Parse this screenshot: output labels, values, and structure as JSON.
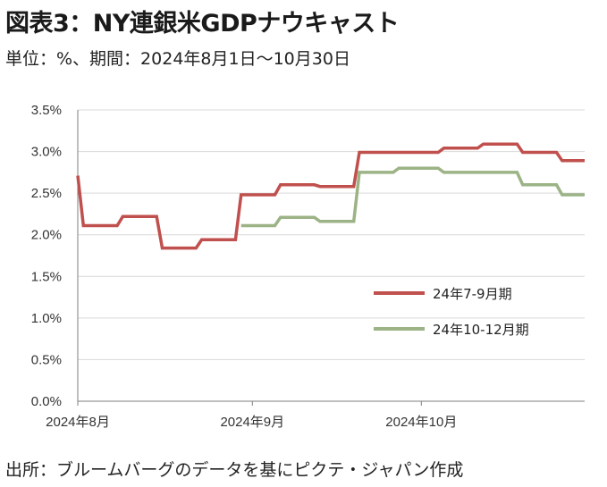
{
  "title": "図表3：NY連銀米GDPナウキャスト",
  "subtitle": "単位：%、期間：2024年8月1日～10月30日",
  "source": "出所：ブルームバーグのデータを基にピクテ・ジャパン作成",
  "chart_data": {
    "type": "line",
    "xlim": [
      "2024-08-01",
      "2024-10-30"
    ],
    "ylim": [
      0,
      3.5
    ],
    "yticks": [
      {
        "value": 0.0,
        "label": "0.0%"
      },
      {
        "value": 0.5,
        "label": "0.5%"
      },
      {
        "value": 1.0,
        "label": "1.0%"
      },
      {
        "value": 1.5,
        "label": "1.5%"
      },
      {
        "value": 2.0,
        "label": "2.0%"
      },
      {
        "value": 2.5,
        "label": "2.5%"
      },
      {
        "value": 3.0,
        "label": "3.0%"
      },
      {
        "value": 3.5,
        "label": "3.5%"
      }
    ],
    "xticks": [
      {
        "date": "2024-08-01",
        "label": "2024年8月"
      },
      {
        "date": "2024-09-01",
        "label": "2024年9月"
      },
      {
        "date": "2024-10-01",
        "label": "2024年10月"
      }
    ],
    "grid": "horizontal",
    "legend": "center-right",
    "series": [
      {
        "name": "24年7-9月期",
        "color": "#c0504d",
        "points": [
          [
            "2024-08-01",
            2.71
          ],
          [
            "2024-08-02",
            2.11
          ],
          [
            "2024-08-08",
            2.11
          ],
          [
            "2024-08-09",
            2.22
          ],
          [
            "2024-08-15",
            2.22
          ],
          [
            "2024-08-16",
            1.84
          ],
          [
            "2024-08-22",
            1.84
          ],
          [
            "2024-08-23",
            1.94
          ],
          [
            "2024-08-29",
            1.94
          ],
          [
            "2024-08-30",
            2.48
          ],
          [
            "2024-09-05",
            2.48
          ],
          [
            "2024-09-06",
            2.6
          ],
          [
            "2024-09-12",
            2.6
          ],
          [
            "2024-09-13",
            2.58
          ],
          [
            "2024-09-19",
            2.58
          ],
          [
            "2024-09-20",
            2.99
          ],
          [
            "2024-10-04",
            2.99
          ],
          [
            "2024-10-05",
            3.04
          ],
          [
            "2024-10-11",
            3.04
          ],
          [
            "2024-10-12",
            3.09
          ],
          [
            "2024-10-18",
            3.09
          ],
          [
            "2024-10-19",
            2.99
          ],
          [
            "2024-10-25",
            2.99
          ],
          [
            "2024-10-26",
            2.89
          ],
          [
            "2024-10-30",
            2.89
          ]
        ]
      },
      {
        "name": "24年10-12月期",
        "color": "#9bb385",
        "points": [
          [
            "2024-08-30",
            2.11
          ],
          [
            "2024-09-05",
            2.11
          ],
          [
            "2024-09-06",
            2.21
          ],
          [
            "2024-09-12",
            2.21
          ],
          [
            "2024-09-13",
            2.16
          ],
          [
            "2024-09-19",
            2.16
          ],
          [
            "2024-09-20",
            2.75
          ],
          [
            "2024-09-26",
            2.75
          ],
          [
            "2024-09-27",
            2.8
          ],
          [
            "2024-10-04",
            2.8
          ],
          [
            "2024-10-05",
            2.75
          ],
          [
            "2024-10-18",
            2.75
          ],
          [
            "2024-10-19",
            2.6
          ],
          [
            "2024-10-25",
            2.6
          ],
          [
            "2024-10-26",
            2.48
          ],
          [
            "2024-10-30",
            2.48
          ]
        ]
      }
    ]
  }
}
